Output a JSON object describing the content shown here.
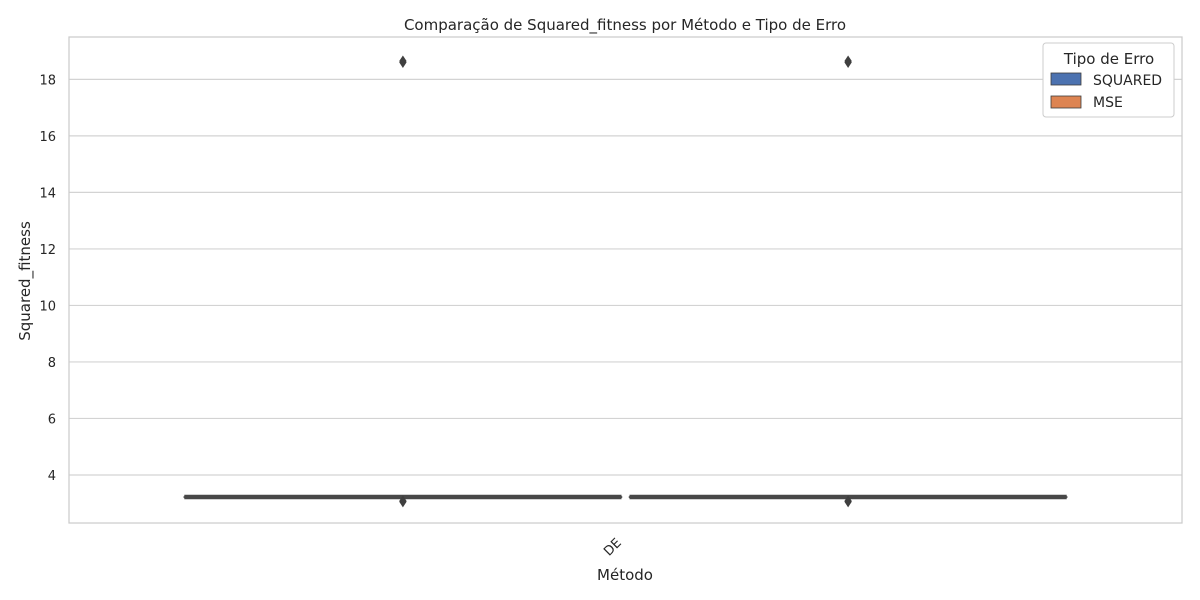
{
  "chart_data": {
    "type": "box",
    "title": "Comparação de Squared_fitness por Método e Tipo de Erro",
    "xlabel": "Método",
    "ylabel": "Squared_fitness",
    "categories": [
      "DE"
    ],
    "ylim": [
      2.3,
      19.5
    ],
    "yticks": [
      4,
      6,
      8,
      10,
      12,
      14,
      16,
      18
    ],
    "grid": true,
    "legend": {
      "title": "Tipo de Erro",
      "position": "top-right"
    },
    "series": [
      {
        "name": "SQUARED",
        "color": "#4c72b0",
        "values": [
          {
            "category": "DE",
            "median": 3.22,
            "q1": 3.22,
            "q3": 3.22,
            "whisker_low": 3.22,
            "whisker_high": 3.22,
            "outliers": [
              18.6,
              18.65,
              3.05,
              3.08
            ]
          }
        ]
      },
      {
        "name": "MSE",
        "color": "#dd8452",
        "values": [
          {
            "category": "DE",
            "median": 3.22,
            "q1": 3.22,
            "q3": 3.22,
            "whisker_low": 3.22,
            "whisker_high": 3.22,
            "outliers": [
              18.6,
              18.65,
              3.05,
              3.08
            ]
          }
        ]
      }
    ]
  }
}
